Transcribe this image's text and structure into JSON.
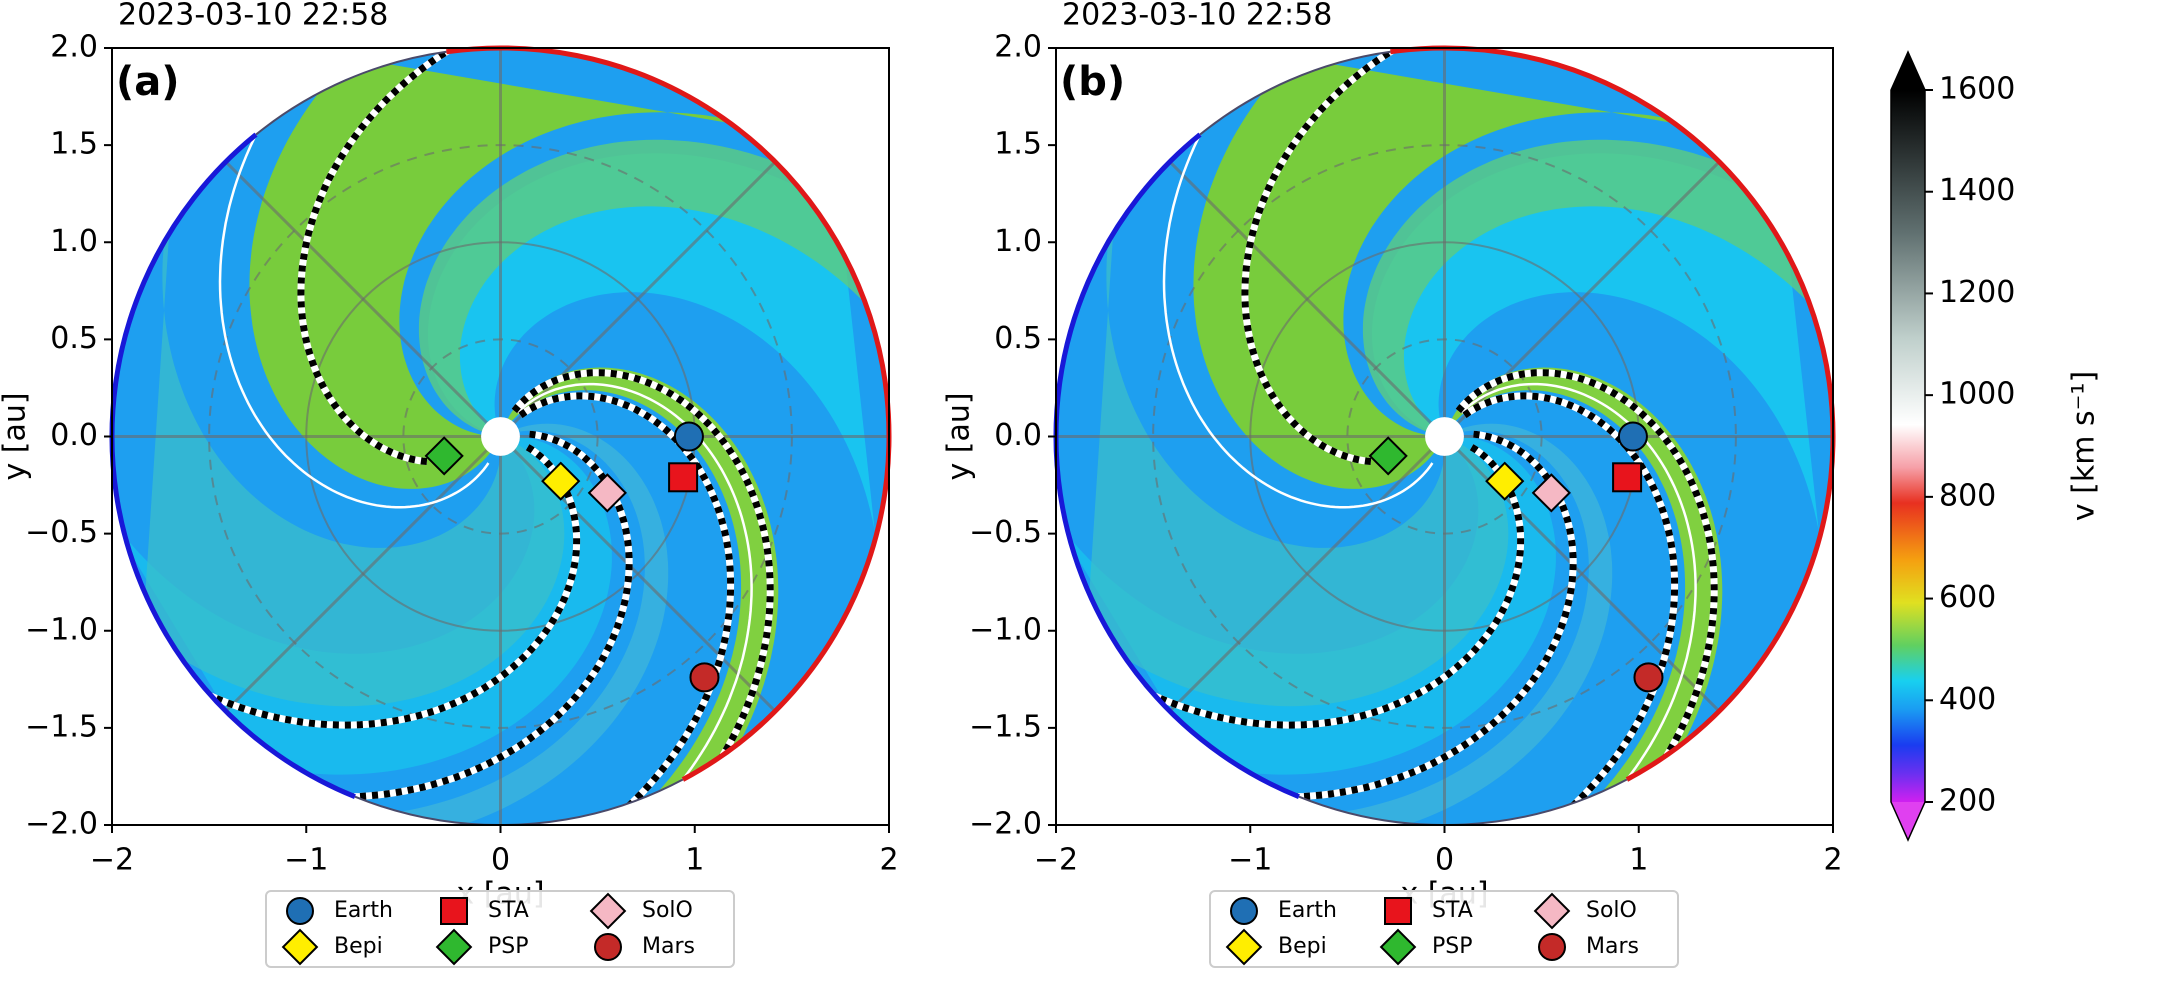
{
  "chart_data": [
    {
      "type": "scatter",
      "timestamp": "2023-03-10 22:58",
      "panel_label": "(a)",
      "xlabel": "x [au]",
      "ylabel": "y [au]",
      "xlim": [
        -2,
        2
      ],
      "ylim": [
        -2,
        2
      ],
      "xticks": [
        {
          "value": -2,
          "label": "−2"
        },
        {
          "value": -1,
          "label": "−1"
        },
        0,
        1,
        2
      ],
      "yticks": [
        {
          "value": -2,
          "label": "−2.0"
        },
        {
          "value": -1.5,
          "label": "−1.5"
        },
        {
          "value": -1,
          "label": "−1.0"
        },
        {
          "value": -0.5,
          "label": "−0.5"
        },
        {
          "value": 0,
          "label": "0.0"
        },
        {
          "value": 0.5,
          "label": "0.5"
        },
        {
          "value": 1,
          "label": "1.0"
        },
        {
          "value": 1.5,
          "label": "1.5"
        },
        {
          "value": 2,
          "label": "2.0"
        }
      ],
      "series": [
        {
          "name": "Earth",
          "color": "#1f6fb4",
          "marker": "o",
          "x": [
            0.97
          ],
          "y": [
            0.0
          ]
        },
        {
          "name": "STA",
          "color": "#e8141c",
          "marker": "s",
          "x": [
            0.94
          ],
          "y": [
            -0.21
          ]
        },
        {
          "name": "SolO",
          "color": "#f5b8c4",
          "marker": "D",
          "x": [
            0.55
          ],
          "y": [
            -0.29
          ]
        },
        {
          "name": "Bepi",
          "color": "#ffee00",
          "marker": "D",
          "x": [
            0.31
          ],
          "y": [
            -0.23
          ]
        },
        {
          "name": "PSP",
          "color": "#2fb82f",
          "marker": "D",
          "x": [
            -0.29
          ],
          "y": [
            -0.1
          ]
        },
        {
          "name": "Mars",
          "color": "#c42a28",
          "marker": "o",
          "x": [
            1.05
          ],
          "y": [
            -1.24
          ]
        }
      ]
    },
    {
      "type": "scatter",
      "timestamp": "2023-03-10 22:58",
      "panel_label": "(b)",
      "xlabel": "x [au]",
      "ylabel": "y [au]",
      "xlim": [
        -2,
        2
      ],
      "ylim": [
        -2,
        2
      ],
      "xticks": [
        {
          "value": -2,
          "label": "−2"
        },
        {
          "value": -1,
          "label": "−1"
        },
        0,
        1,
        2
      ],
      "yticks": [
        {
          "value": -2,
          "label": "−2.0"
        },
        {
          "value": -1.5,
          "label": "−1.5"
        },
        {
          "value": -1,
          "label": "−1.0"
        },
        {
          "value": -0.5,
          "label": "−0.5"
        },
        {
          "value": 0,
          "label": "0.0"
        },
        {
          "value": 0.5,
          "label": "0.5"
        },
        {
          "value": 1,
          "label": "1.0"
        },
        {
          "value": 1.5,
          "label": "1.5"
        },
        {
          "value": 2,
          "label": "2.0"
        }
      ],
      "series": [
        {
          "name": "Earth",
          "color": "#1f6fb4",
          "marker": "o",
          "x": [
            0.97
          ],
          "y": [
            0.0
          ]
        },
        {
          "name": "STA",
          "color": "#e8141c",
          "marker": "s",
          "x": [
            0.94
          ],
          "y": [
            -0.21
          ]
        },
        {
          "name": "SolO",
          "color": "#f5b8c4",
          "marker": "D",
          "x": [
            0.55
          ],
          "y": [
            -0.29
          ]
        },
        {
          "name": "Bepi",
          "color": "#ffee00",
          "marker": "D",
          "x": [
            0.31
          ],
          "y": [
            -0.23
          ]
        },
        {
          "name": "PSP",
          "color": "#2fb82f",
          "marker": "D",
          "x": [
            -0.29
          ],
          "y": [
            -0.1
          ]
        },
        {
          "name": "Mars",
          "color": "#c42a28",
          "marker": "o",
          "x": [
            1.05
          ],
          "y": [
            -1.24
          ]
        }
      ],
      "colorbar": {
        "label": "v [km s⁻¹]",
        "lim": [
          200,
          1600
        ],
        "ticks": [
          200,
          400,
          600,
          800,
          1000,
          1200,
          1400,
          1600
        ]
      }
    }
  ]
}
